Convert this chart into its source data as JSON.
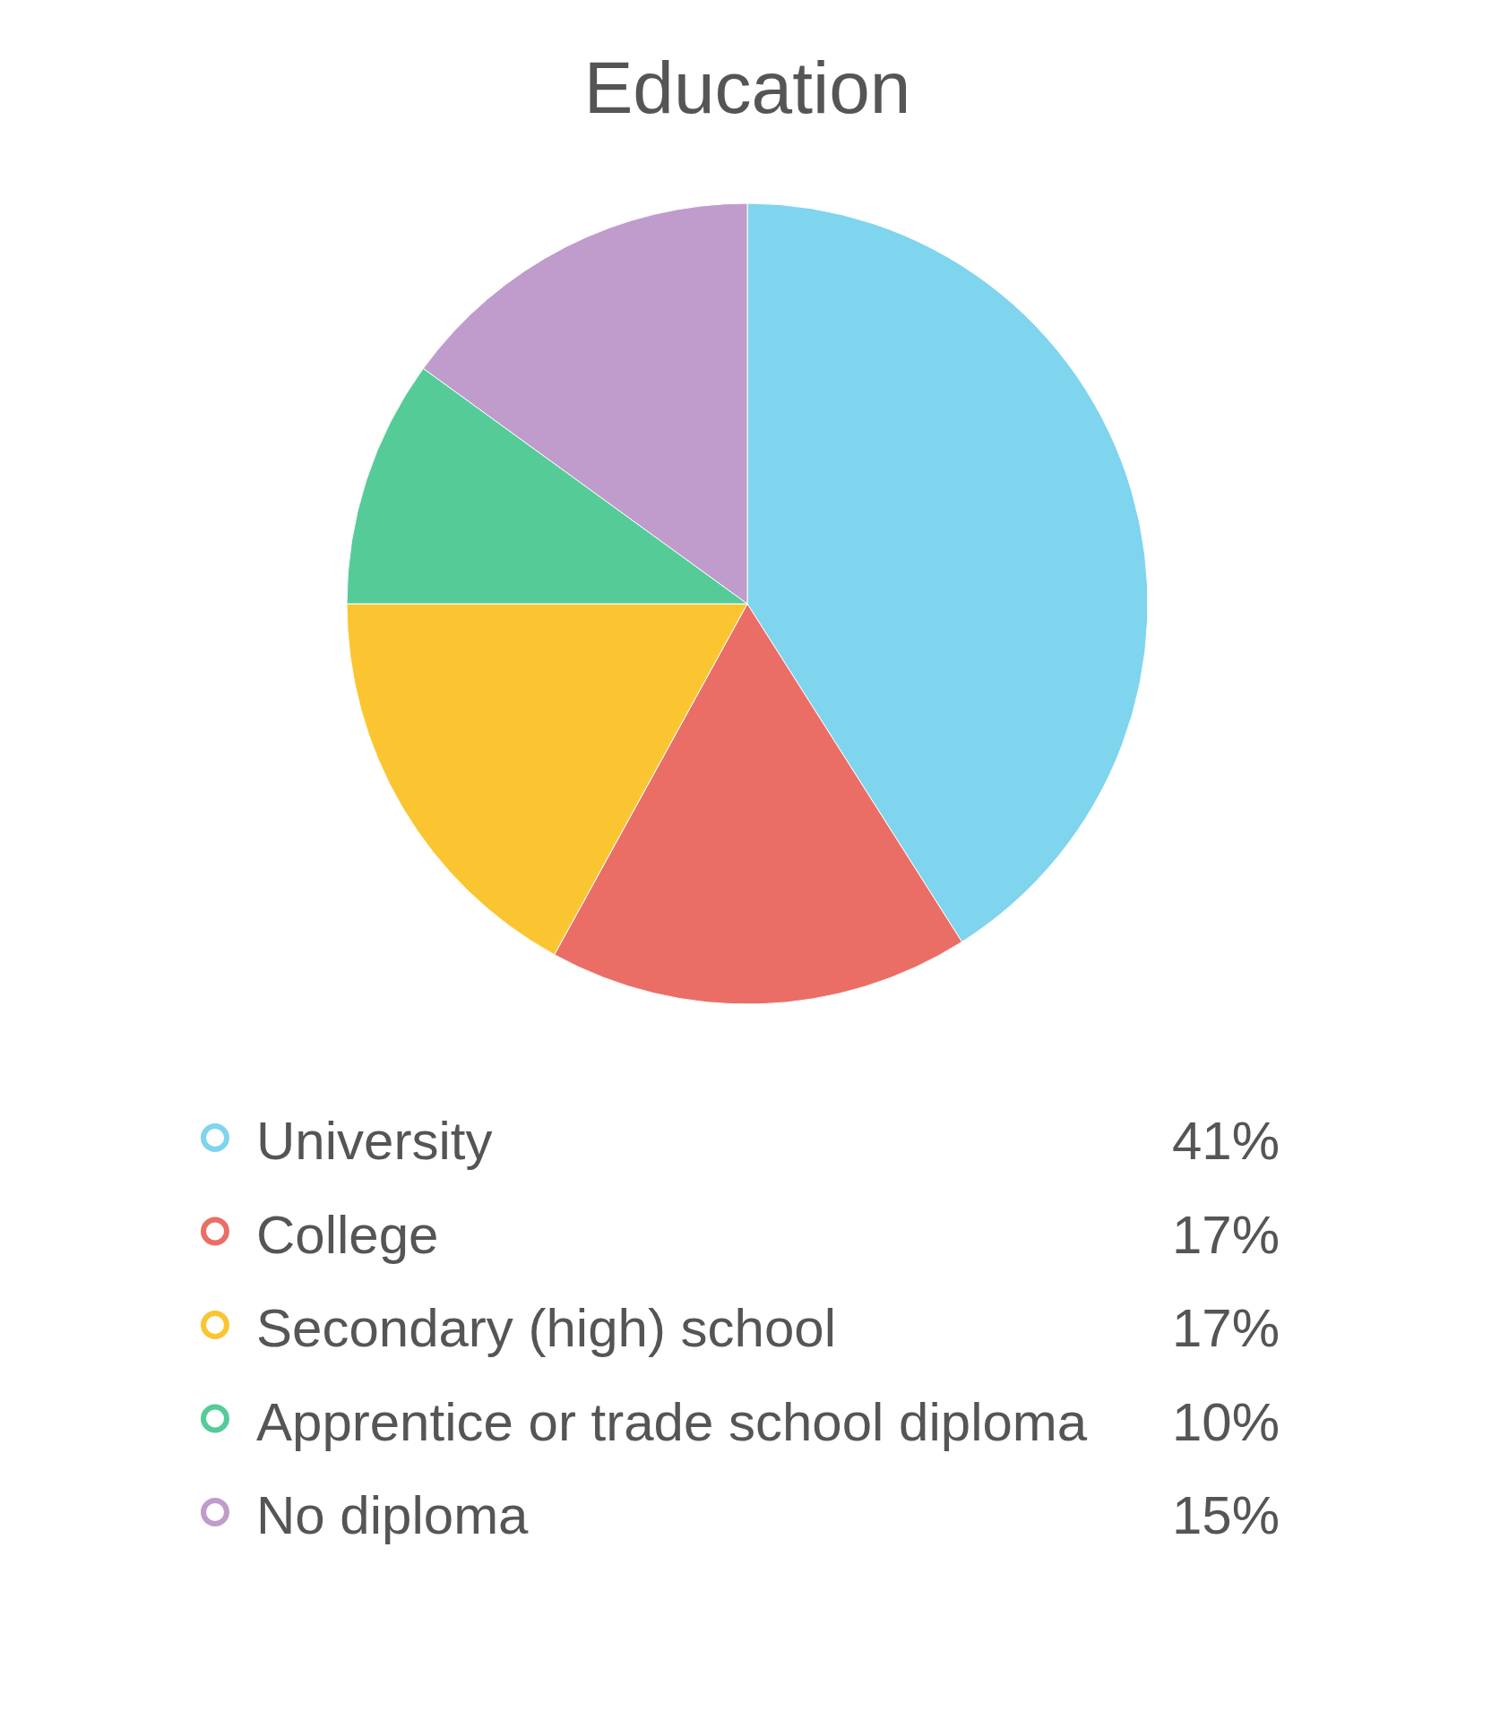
{
  "chart_data": {
    "type": "pie",
    "title": "Education",
    "categories": [
      "University",
      "College",
      "Secondary (high) school",
      "Apprentice or trade school diploma",
      "No diploma"
    ],
    "values": [
      41,
      17,
      17,
      10,
      15
    ],
    "colors": [
      "#7fd4ee",
      "#ea6e65",
      "#fbc532",
      "#55cb98",
      "#bf9ccb"
    ],
    "value_labels": [
      "41%",
      "17%",
      "17%",
      "10%",
      "15%"
    ],
    "legend": "bottom"
  }
}
